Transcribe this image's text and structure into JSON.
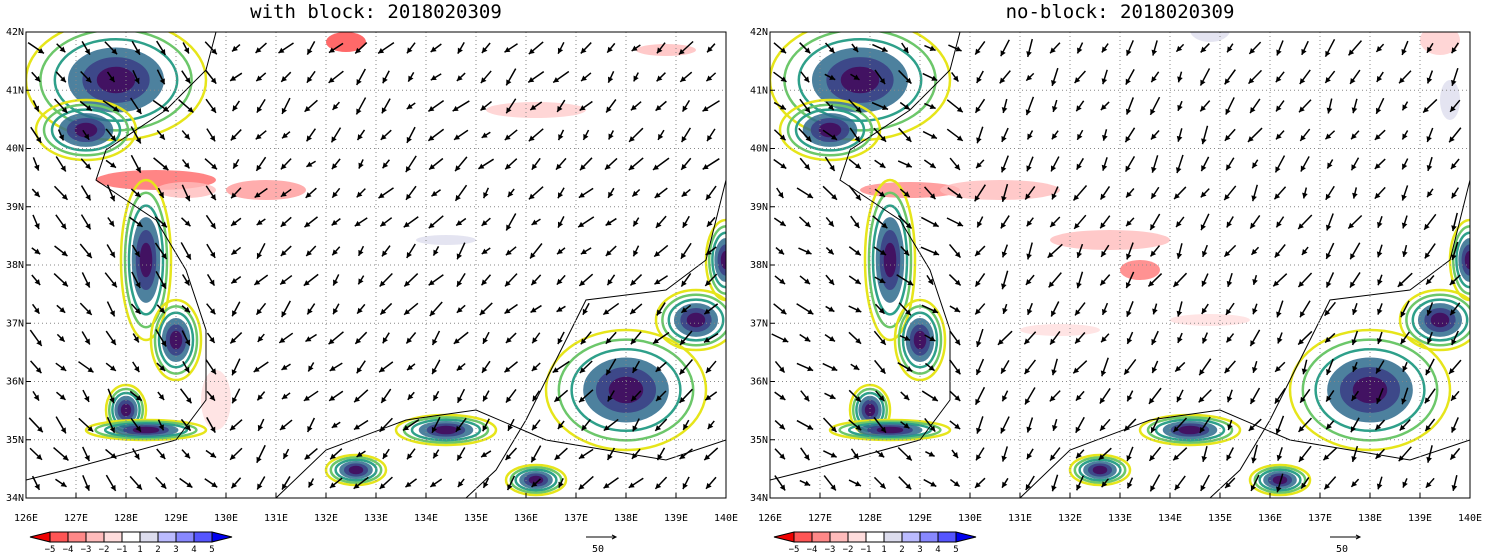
{
  "panels": [
    {
      "title": "with block: 2018020309"
    },
    {
      "title": "no-block: 2018020309"
    }
  ],
  "lon_labels": [
    "126E",
    "127E",
    "128E",
    "129E",
    "130E",
    "131E",
    "132E",
    "133E",
    "134E",
    "135E",
    "136E",
    "137E",
    "138E",
    "139E",
    "140E"
  ],
  "lat_labels": [
    "34N",
    "35N",
    "36N",
    "37N",
    "38N",
    "39N",
    "40N",
    "41N",
    "42N"
  ],
  "colorbar_labels": [
    "−5",
    "−4",
    "−3",
    "−2",
    "−1",
    "1",
    "2",
    "3",
    "4",
    "5"
  ],
  "vector_reference": "50"
}
